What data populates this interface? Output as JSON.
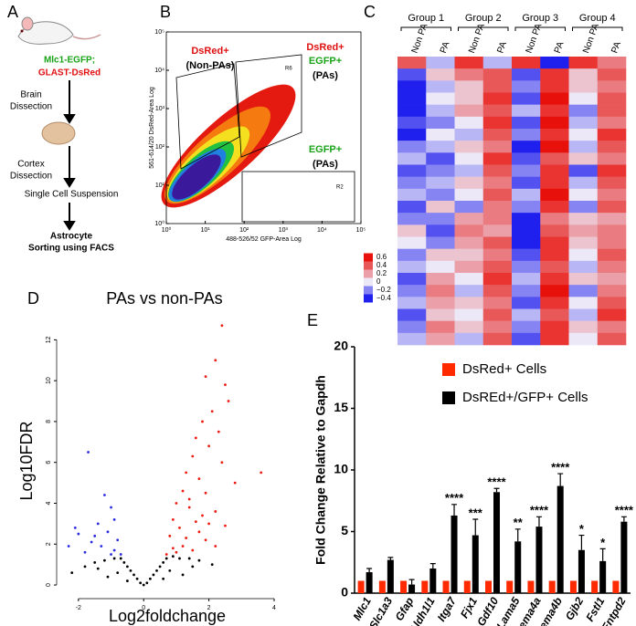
{
  "diagram": {
    "panel_label": "A",
    "genotype": [
      "Mlc1-EGFP;",
      "GLAST-DsRed"
    ],
    "steps": [
      "Brain",
      "Dissection",
      "Cortex",
      "Dissection",
      "Single Cell Suspension",
      "Astrocyte",
      "Sorting using FACS"
    ]
  },
  "chart_data": [
    {
      "type": "flow-cytometry",
      "panel_label": "B",
      "xlabel": "488-526/52 GFP-Area Log",
      "ylabel": "561-614/20 DsRed-Area Log",
      "log_scale": true,
      "xlim": [
        1,
        100000
      ],
      "ylim": [
        1,
        100000
      ],
      "xticks": [
        {
          "value": 1,
          "label": "10⁰"
        },
        {
          "value": 10,
          "label": "10¹"
        },
        {
          "value": 100,
          "label": "10²"
        },
        {
          "value": 1000,
          "label": "10³"
        },
        {
          "value": 10000,
          "label": "10⁴"
        },
        {
          "value": 100000,
          "label": "10⁵"
        }
      ],
      "yticks": [
        {
          "value": 1,
          "label": "10⁰"
        },
        {
          "value": 10,
          "label": "10¹"
        },
        {
          "value": 100,
          "label": "10²"
        },
        {
          "value": 1000,
          "label": "10³"
        },
        {
          "value": 10000,
          "label": "10⁴"
        },
        {
          "value": 100000,
          "label": "10⁵"
        }
      ],
      "gate_names": [
        "R6",
        "R2"
      ],
      "annotations": [
        [
          "DsRed+",
          "(Non-PAs)"
        ],
        [
          "DsRed+",
          "EGFP+",
          "(PAs)"
        ],
        [
          "EGFP+",
          "(PAs)"
        ]
      ]
    },
    {
      "type": "heatmap",
      "panel_label": "C",
      "groups": [
        "Group 1",
        "Group 2",
        "Group 3",
        "Group 4"
      ],
      "columns": [
        "Non PA",
        "PA",
        "Non PA",
        "PA",
        "Non PA",
        "PA",
        "Non PA",
        "PA"
      ],
      "colormap": [
        "#2020ee",
        "#ece8f8",
        "#e8100a"
      ],
      "colorbar_ticks": [
        0.6,
        0.4,
        0.2,
        0,
        {
          "value": -0.2,
          "label": "−0.2"
        },
        {
          "value": -0.4,
          "label": "−0.4"
        }
      ],
      "values": [
        [
          0.4,
          -0.1,
          0.5,
          -0.1,
          0.5,
          -0.4,
          0.5,
          0.3
        ],
        [
          -0.3,
          0.1,
          0.3,
          0.4,
          -0.3,
          0.5,
          0.1,
          0.4
        ],
        [
          -0.4,
          -0.1,
          0.1,
          0.4,
          -0.2,
          0.5,
          0.1,
          0.3
        ],
        [
          -0.5,
          0.0,
          0.1,
          0.5,
          -0.3,
          0.6,
          0.0,
          0.4
        ],
        [
          -0.5,
          -0.1,
          0.2,
          0.4,
          -0.1,
          0.5,
          -0.2,
          0.4
        ],
        [
          -0.3,
          -0.2,
          0.0,
          0.5,
          -0.3,
          0.6,
          -0.1,
          0.3
        ],
        [
          -0.4,
          0.0,
          -0.1,
          0.4,
          -0.2,
          0.5,
          0.0,
          0.5
        ],
        [
          -0.2,
          -0.1,
          0.1,
          0.3,
          -0.4,
          0.6,
          -0.1,
          0.4
        ],
        [
          -0.1,
          -0.3,
          0.0,
          0.5,
          -0.3,
          0.4,
          0.1,
          0.3
        ],
        [
          -0.3,
          -0.2,
          -0.1,
          0.4,
          -0.2,
          0.5,
          -0.3,
          0.5
        ],
        [
          -0.2,
          -0.1,
          0.1,
          0.3,
          -0.3,
          0.5,
          -0.1,
          0.4
        ],
        [
          -0.1,
          -0.2,
          0.0,
          0.4,
          -0.1,
          0.6,
          0.0,
          0.3
        ],
        [
          -0.3,
          0.1,
          -0.2,
          0.3,
          -0.2,
          0.5,
          -0.2,
          0.4
        ],
        [
          -0.2,
          -0.2,
          0.2,
          0.3,
          -0.4,
          0.3,
          0.1,
          0.2
        ],
        [
          0.1,
          -0.3,
          0.3,
          0.2,
          -0.5,
          0.4,
          0.2,
          0.3
        ],
        [
          0.0,
          -0.2,
          0.2,
          0.4,
          -0.4,
          0.5,
          0.1,
          0.3
        ],
        [
          -0.2,
          0.1,
          0.1,
          0.3,
          -0.3,
          0.5,
          0.0,
          0.4
        ],
        [
          -0.1,
          0.0,
          0.2,
          0.4,
          -0.2,
          0.4,
          -0.1,
          0.3
        ],
        [
          -0.3,
          0.2,
          0.0,
          0.5,
          -0.1,
          0.5,
          0.1,
          0.2
        ],
        [
          -0.2,
          0.3,
          -0.1,
          0.4,
          -0.2,
          0.6,
          -0.2,
          0.3
        ],
        [
          -0.1,
          0.2,
          0.1,
          0.3,
          -0.3,
          0.5,
          0.0,
          0.4
        ],
        [
          -0.3,
          0.1,
          0.0,
          0.4,
          -0.1,
          0.4,
          -0.1,
          0.5
        ],
        [
          -0.2,
          0.3,
          0.1,
          0.3,
          -0.2,
          0.5,
          0.1,
          0.3
        ],
        [
          -0.1,
          0.2,
          -0.1,
          0.4,
          -0.3,
          0.5,
          0.0,
          0.4
        ]
      ]
    },
    {
      "type": "scatter",
      "panel_label": "D",
      "title": "PAs vs non-PAs",
      "xlabel": "Log2foldchange",
      "ylabel": "Log10FDR",
      "xlim": [
        -2.5,
        4
      ],
      "ylim": [
        -0.4,
        13
      ],
      "xticks": [
        -2,
        0,
        2,
        4
      ],
      "yticks": [
        0,
        2,
        4,
        6,
        8,
        10,
        12
      ],
      "series": [
        {
          "color": "#000000",
          "x": [
            0,
            -0.1,
            0.1,
            -0.2,
            0.2,
            -0.3,
            0.3,
            -0.4,
            0.4,
            -0.5,
            0.5,
            -0.6,
            0.6,
            -0.7,
            0.7,
            -0.9,
            0.9,
            -1.2,
            1.1,
            -1.5,
            1.4,
            -1.8,
            1.7,
            -2.2,
            2.1,
            -0.8,
            0.8,
            1.2,
            -1.1,
            -0.5,
            0.6,
            -1.4,
            1.5
          ],
          "values": [
            0,
            0.1,
            0.1,
            0.3,
            0.3,
            0.5,
            0.5,
            0.7,
            0.7,
            0.9,
            0.9,
            1.1,
            1.1,
            1.3,
            1.3,
            1.3,
            1.4,
            1.2,
            1.3,
            1.1,
            1.3,
            0.9,
            1.2,
            0.6,
            1.0,
            0.6,
            0.7,
            0.5,
            0.4,
            0.2,
            0.3,
            0.8,
            0.9
          ]
        },
        {
          "color": "#2a2ae0",
          "x": [
            -1.7,
            -1.2,
            -1.0,
            -0.9,
            -1.4,
            -2.0,
            -1.1,
            -0.8,
            -1.6,
            -2.3,
            -1.3,
            -0.9,
            -1.8,
            -1.0,
            -0.7,
            -2.1,
            -1.5
          ],
          "values": [
            6.5,
            4.4,
            3.8,
            3.2,
            3.0,
            2.5,
            2.6,
            2.2,
            2.1,
            1.9,
            1.9,
            1.7,
            1.6,
            1.5,
            1.5,
            2.8,
            2.4
          ]
        },
        {
          "color": "#ee1a10",
          "x": [
            2.4,
            2.2,
            1.9,
            2.5,
            2.6,
            3.6,
            2.1,
            1.8,
            2.3,
            1.6,
            2.0,
            1.5,
            2.4,
            1.3,
            1.7,
            2.8,
            1.2,
            1.9,
            1.0,
            1.4,
            2.2,
            0.9,
            1.6,
            1.1,
            2.5,
            0.8,
            1.3,
            1.9,
            0.9,
            1.5,
            2.2,
            1.0,
            0.7,
            1.2,
            1.7,
            2.0,
            1.4,
            1.8
          ],
          "values": [
            12.7,
            11.0,
            10.2,
            9.8,
            9.0,
            5.5,
            8.5,
            8.0,
            7.5,
            7.2,
            6.8,
            6.3,
            6.0,
            5.5,
            5.2,
            5.0,
            4.6,
            4.5,
            4.0,
            3.8,
            3.6,
            3.2,
            3.1,
            2.8,
            2.9,
            2.4,
            2.3,
            2.2,
            1.8,
            1.7,
            1.9,
            1.6,
            1.5,
            1.9,
            2.6,
            3.0,
            4.2,
            3.4
          ]
        }
      ]
    },
    {
      "type": "bar",
      "panel_label": "E",
      "ylabel": "Fold Change Relative to Gapdh",
      "categories": [
        "Mlc1",
        "Slc1a3",
        "Gfap",
        "Aldh1l1",
        "Itga7",
        "Fjx1",
        "Gdf10",
        "Lama5",
        "Sema4a",
        "Sema4b",
        "Gjb2",
        "Fstl1",
        "Entpd2"
      ],
      "ylim": [
        0,
        20
      ],
      "yticks": [
        0,
        5,
        10,
        15,
        20
      ],
      "series": [
        {
          "name": "DsRed+ Cells",
          "color": "#ff2a00",
          "values": [
            1,
            1,
            1,
            1,
            1,
            1,
            1,
            1,
            1,
            1,
            1,
            1,
            1
          ]
        },
        {
          "name": "DsREd+/GFP+ Cells",
          "color": "#000000",
          "values": [
            1.7,
            2.7,
            0.7,
            2.0,
            6.3,
            4.7,
            8.2,
            4.2,
            5.4,
            8.7,
            3.5,
            2.6,
            5.8
          ],
          "errors": [
            0.3,
            0.2,
            0.4,
            0.4,
            0.9,
            1.3,
            0.3,
            1.0,
            0.8,
            1.0,
            1.2,
            1.0,
            0.4
          ],
          "annotations": [
            null,
            null,
            null,
            null,
            "****",
            "***",
            "****",
            "**",
            "****",
            "****",
            "*",
            "*",
            "****"
          ]
        }
      ]
    }
  ]
}
